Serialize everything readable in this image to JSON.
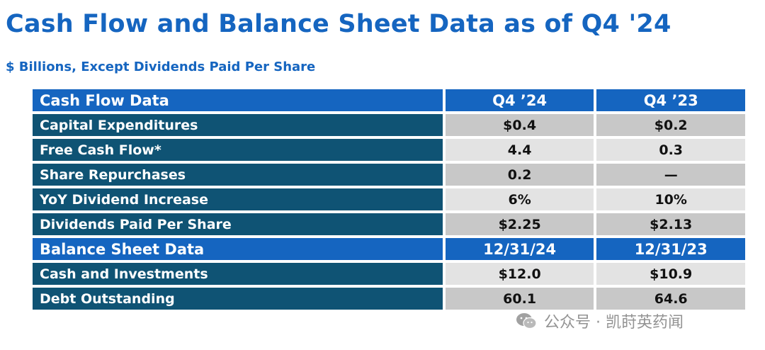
{
  "title": "Cash Flow and Balance Sheet Data as of Q4 '24",
  "subtitle": "$ Billions, Except Dividends Paid Per Share",
  "cash_flow": {
    "header": {
      "label": "Cash Flow Data",
      "col1": "Q4 ’24",
      "col2": "Q4 ’23"
    },
    "rows": [
      {
        "label": "Capital Expenditures",
        "v1": "$0.4",
        "v2": "$0.2"
      },
      {
        "label": "Free Cash Flow*",
        "v1": "4.4",
        "v2": "0.3"
      },
      {
        "label": "Share Repurchases",
        "v1": "0.2",
        "v2": "—"
      },
      {
        "label": "YoY Dividend Increase",
        "v1": "6%",
        "v2": "10%"
      },
      {
        "label": "Dividends Paid Per Share",
        "v1": "$2.25",
        "v2": "$2.13"
      }
    ]
  },
  "balance_sheet": {
    "header": {
      "label": "Balance Sheet Data",
      "col1": "12/31/24",
      "col2": "12/31/23"
    },
    "rows": [
      {
        "label": "Cash and Investments",
        "v1": "$12.0",
        "v2": "$10.9"
      },
      {
        "label": "Debt Outstanding",
        "v1": "60.1",
        "v2": "64.6"
      }
    ]
  },
  "watermark": {
    "text": "公众号 · 凯莳英药闻",
    "icon": "wechat-icon"
  },
  "colors": {
    "title_blue": "#1565c0",
    "header_blue": "#1565c0",
    "label_teal": "#0f5374",
    "cell_gray_dark": "#c8c8c8",
    "cell_gray_light": "#e3e3e3"
  }
}
